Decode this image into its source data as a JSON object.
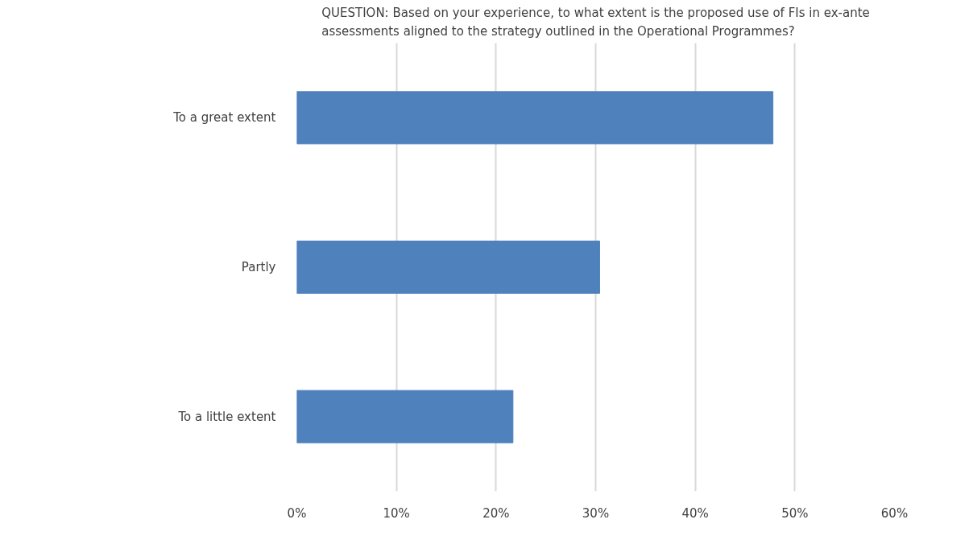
{
  "chart_data": {
    "type": "bar",
    "orientation": "horizontal",
    "title": "QUESTION: Based on your experience, to what extent is the proposed use of FIs in ex-ante assessments aligned to the strategy outlined in the Operational Programmes?",
    "categories": [
      "To a great extent",
      "Partly",
      "To a little extent"
    ],
    "values": [
      47.8,
      30.4,
      21.7
    ],
    "color": "#4f81bd",
    "xlim": [
      0,
      60
    ],
    "xticks": [
      {
        "value": 0,
        "label": "0%"
      },
      {
        "value": 10,
        "label": "10%"
      },
      {
        "value": 20,
        "label": "20%"
      },
      {
        "value": 30,
        "label": "30%"
      },
      {
        "value": 40,
        "label": "40%"
      },
      {
        "value": 50,
        "label": "50%"
      },
      {
        "value": 60,
        "label": "60%"
      }
    ],
    "grid": "x"
  }
}
